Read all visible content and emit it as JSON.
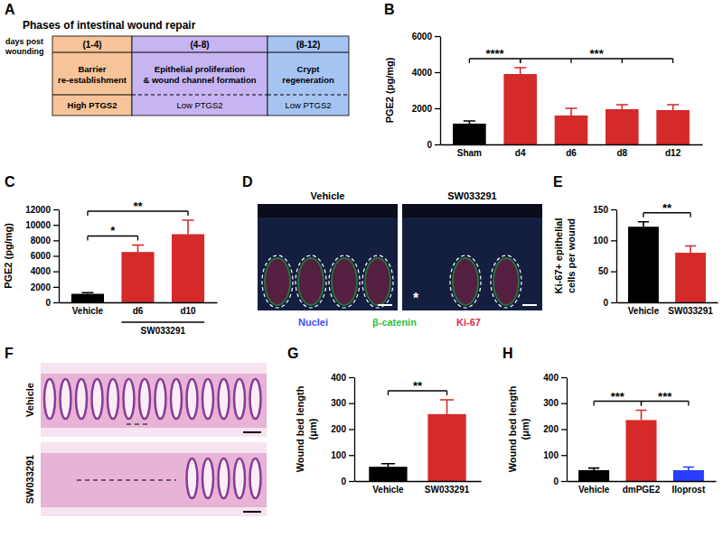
{
  "diagram": {
    "title": "A",
    "heading": "Phases of intestinal wound repair",
    "row_label": [
      "days post",
      "wounding"
    ],
    "phases": [
      {
        "days": "(1-4)",
        "lines": [
          "Barrier",
          "re-establishment"
        ],
        "ptgs2": "High PTGS2",
        "color": "#f7c49a"
      },
      {
        "days": "(4-8)",
        "lines": [
          "Epithelial proliferation",
          "& wound channel formation"
        ],
        "ptgs2": "Low PTGS2",
        "color": "#c6b5f2"
      },
      {
        "days": "(8-12)",
        "lines": [
          "Crypt",
          "regeneration"
        ],
        "ptgs2": "Low PTGS2",
        "color": "#a6c4f2"
      }
    ]
  },
  "chart_data": [
    {
      "type": "bar",
      "title": "B",
      "ylabel": [
        "PGE2 (pg/mg)"
      ],
      "categories": [
        "Sham",
        "d4",
        "d6",
        "d8",
        "d12"
      ],
      "values": [
        1150,
        3900,
        1600,
        1950,
        1900
      ],
      "errors": [
        150,
        350,
        400,
        250,
        300
      ],
      "colors": [
        "#000000",
        "#d42a2a",
        "#d42a2a",
        "#d42a2a",
        "#d42a2a"
      ],
      "ylim": [
        0,
        6000
      ],
      "yticks": [
        0,
        2000,
        4000,
        6000
      ],
      "annotations": [
        {
          "text": "****",
          "from": 0,
          "to": [
            1
          ]
        },
        {
          "text": "***",
          "from": 1,
          "to": [
            2,
            3,
            4
          ]
        }
      ]
    },
    {
      "type": "bar",
      "title": "C",
      "ylabel": [
        "PGE2 (pg/mg)"
      ],
      "categories": [
        "Vehicle",
        "d6",
        "d10"
      ],
      "values": [
        1100,
        6500,
        8800
      ],
      "errors": [
        150,
        900,
        1800
      ],
      "colors": [
        "#000000",
        "#d42a2a",
        "#d42a2a"
      ],
      "ylim": [
        0,
        12000
      ],
      "yticks": [
        0,
        2000,
        4000,
        6000,
        8000,
        10000,
        12000
      ],
      "annotations": [
        {
          "text": "*",
          "from": 0,
          "to": [
            1
          ]
        },
        {
          "text": "**",
          "from": 0,
          "to": [
            2
          ]
        }
      ],
      "category_groups": [
        {
          "label": "SW033291",
          "from": 1,
          "to": 2
        }
      ]
    },
    {
      "type": "bar",
      "title": "E",
      "ylabel": [
        "Ki-67+ epithelial",
        "cells per wound"
      ],
      "categories": [
        "Vehicle",
        "SW033291"
      ],
      "values": [
        122,
        80
      ],
      "errors": [
        8,
        11
      ],
      "colors": [
        "#000000",
        "#d42a2a"
      ],
      "ylim": [
        0,
        150
      ],
      "yticks": [
        0,
        50,
        100,
        150
      ],
      "annotations": [
        {
          "text": "**",
          "from": 0,
          "to": [
            1
          ]
        }
      ]
    },
    {
      "type": "bar",
      "title": "G",
      "ylabel": [
        "Wound bed length",
        "(μm)"
      ],
      "categories": [
        "Vehicle",
        "SW033291"
      ],
      "values": [
        55,
        258
      ],
      "errors": [
        12,
        55
      ],
      "colors": [
        "#000000",
        "#d42a2a"
      ],
      "ylim": [
        0,
        400
      ],
      "yticks": [
        0,
        100,
        200,
        300,
        400
      ],
      "annotations": [
        {
          "text": "**",
          "from": 0,
          "to": [
            1
          ]
        }
      ]
    },
    {
      "type": "bar",
      "title": "H",
      "ylabel": [
        "Wound bed length",
        "(μm)"
      ],
      "categories": [
        "Vehicle",
        "dmPGE2",
        "Iloprost"
      ],
      "values": [
        42,
        235,
        42
      ],
      "errors": [
        8,
        38,
        12
      ],
      "colors": [
        "#000000",
        "#d42a2a",
        "#2a3cff"
      ],
      "ylim": [
        0,
        400
      ],
      "yticks": [
        0,
        100,
        200,
        300,
        400
      ],
      "annotations": [
        {
          "text": "***",
          "from": 0,
          "to": [
            1
          ]
        },
        {
          "text": "***",
          "from": 1,
          "to": [
            2
          ]
        }
      ]
    }
  ],
  "images": [
    {
      "title": "D",
      "labels": [
        "Vehicle",
        "SW033291"
      ],
      "annotation": "*",
      "legend": [
        {
          "label": "Nuclei",
          "color": "#3b4cff"
        },
        {
          "label": "β-catenin",
          "color": "#2fbf3a"
        },
        {
          "label": "Ki-67",
          "color": "#e0284a"
        }
      ]
    },
    {
      "title": "F",
      "labels": [
        "Vehicle",
        "SW033291"
      ]
    }
  ]
}
